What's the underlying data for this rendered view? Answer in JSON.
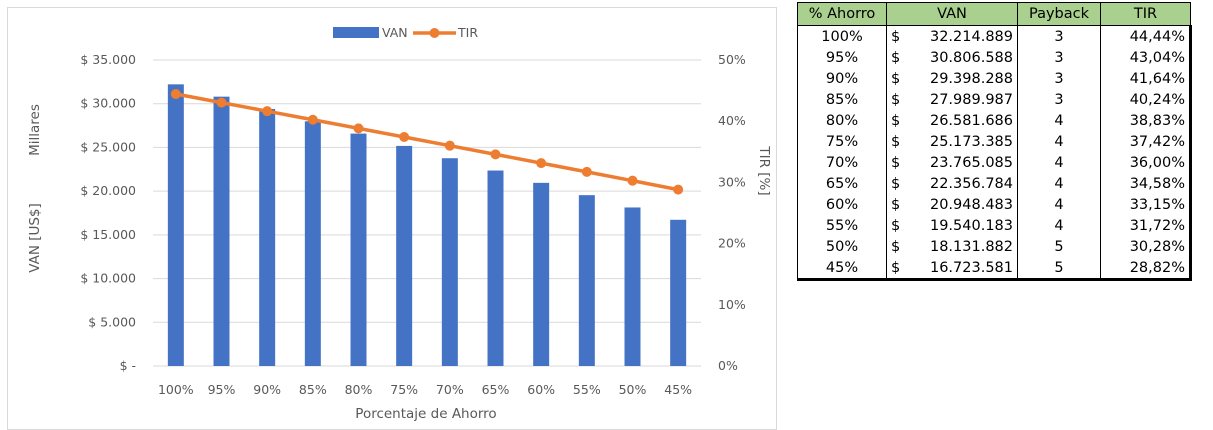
{
  "chart_data": {
    "type": "bar",
    "categories": [
      "100%",
      "95%",
      "90%",
      "85%",
      "80%",
      "75%",
      "70%",
      "65%",
      "60%",
      "55%",
      "50%",
      "45%"
    ],
    "series": [
      {
        "name": "VAN",
        "type": "bar",
        "axis": "left",
        "values": [
          32214.889,
          30806.588,
          29398.288,
          27989.987,
          26581.686,
          25173.385,
          23765.085,
          22356.784,
          20948.483,
          19540.183,
          18131.882,
          16723.581
        ],
        "color": "#4472c4"
      },
      {
        "name": "TIR",
        "type": "line",
        "axis": "right",
        "values": [
          44.44,
          43.04,
          41.64,
          40.24,
          38.83,
          37.42,
          36.0,
          34.58,
          33.15,
          31.72,
          30.28,
          28.82
        ],
        "color": "#ed7d31"
      }
    ],
    "xlabel": "Porcentaje de Ahorro",
    "ylabel": "VAN [US$]",
    "y_units_label": "Millares",
    "y2label": "TIR [%]",
    "ylim": [
      0,
      35000
    ],
    "y2lim": [
      0,
      50
    ],
    "y_ticks": [
      "$ -",
      "$ 5.000",
      "$ 10.000",
      "$ 15.000",
      "$ 20.000",
      "$ 25.000",
      "$ 30.000",
      "$ 35.000"
    ],
    "y2_ticks": [
      "0%",
      "10%",
      "20%",
      "30%",
      "40%",
      "50%"
    ],
    "grid": true,
    "legend_position": "top"
  },
  "table": {
    "headers": [
      "% Ahorro",
      "VAN",
      "Payback",
      "TIR"
    ],
    "currency_symbol": "$",
    "rows": [
      {
        "pct": "100%",
        "van": "32.214.889",
        "payback": "3",
        "tir": "44,44%"
      },
      {
        "pct": "95%",
        "van": "30.806.588",
        "payback": "3",
        "tir": "43,04%"
      },
      {
        "pct": "90%",
        "van": "29.398.288",
        "payback": "3",
        "tir": "41,64%"
      },
      {
        "pct": "85%",
        "van": "27.989.987",
        "payback": "3",
        "tir": "40,24%"
      },
      {
        "pct": "80%",
        "van": "26.581.686",
        "payback": "4",
        "tir": "38,83%"
      },
      {
        "pct": "75%",
        "van": "25.173.385",
        "payback": "4",
        "tir": "37,42%"
      },
      {
        "pct": "70%",
        "van": "23.765.085",
        "payback": "4",
        "tir": "36,00%"
      },
      {
        "pct": "65%",
        "van": "22.356.784",
        "payback": "4",
        "tir": "34,58%"
      },
      {
        "pct": "60%",
        "van": "20.948.483",
        "payback": "4",
        "tir": "33,15%"
      },
      {
        "pct": "55%",
        "van": "19.540.183",
        "payback": "4",
        "tir": "31,72%"
      },
      {
        "pct": "50%",
        "van": "18.131.882",
        "payback": "5",
        "tir": "30,28%"
      },
      {
        "pct": "45%",
        "van": "16.723.581",
        "payback": "5",
        "tir": "28,82%"
      }
    ]
  }
}
